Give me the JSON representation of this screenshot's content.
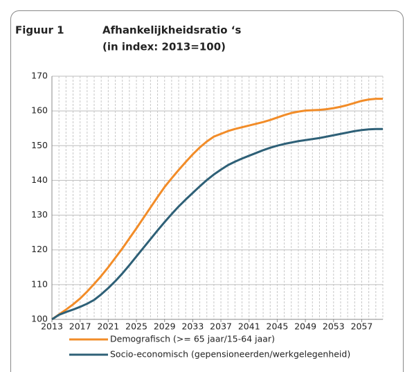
{
  "chart_data": {
    "type": "line",
    "figure_label": "Figuur 1",
    "title": "Afhankelijkheidsratio ‘s",
    "subtitle": "(in index: 2013=100)",
    "x": [
      2013,
      2014,
      2015,
      2016,
      2017,
      2018,
      2019,
      2020,
      2021,
      2022,
      2023,
      2024,
      2025,
      2026,
      2027,
      2028,
      2029,
      2030,
      2031,
      2032,
      2033,
      2034,
      2035,
      2036,
      2037,
      2038,
      2039,
      2040,
      2041,
      2042,
      2043,
      2044,
      2045,
      2046,
      2047,
      2048,
      2049,
      2050,
      2051,
      2052,
      2053,
      2054,
      2055,
      2056,
      2057,
      2058,
      2059,
      2060
    ],
    "series": [
      {
        "name": "Demografisch (>= 65 jaar/15-64 jaar)",
        "color": "#f28c28",
        "values": [
          100,
          101.4,
          102.8,
          104.3,
          106.0,
          108.0,
          110.2,
          112.5,
          115.0,
          117.7,
          120.4,
          123.3,
          126.2,
          129.2,
          132.2,
          135.2,
          138.1,
          140.6,
          143.0,
          145.3,
          147.5,
          149.5,
          151.2,
          152.6,
          153.4,
          154.2,
          154.8,
          155.3,
          155.8,
          156.3,
          156.8,
          157.4,
          158.1,
          158.8,
          159.4,
          159.8,
          160.1,
          160.2,
          160.3,
          160.5,
          160.8,
          161.2,
          161.7,
          162.3,
          162.9,
          163.3,
          163.5,
          163.5
        ]
      },
      {
        "name": "Socio-economisch (gepensioneerden/werkgelegenheid)",
        "color": "#2e6077",
        "values": [
          100,
          101.3,
          102.1,
          102.8,
          103.6,
          104.5,
          105.6,
          107.2,
          109.0,
          111.0,
          113.2,
          115.6,
          118.1,
          120.6,
          123.1,
          125.6,
          128.0,
          130.3,
          132.5,
          134.5,
          136.4,
          138.3,
          140.1,
          141.7,
          143.1,
          144.4,
          145.4,
          146.3,
          147.1,
          147.9,
          148.7,
          149.4,
          150.0,
          150.5,
          150.9,
          151.3,
          151.6,
          151.9,
          152.2,
          152.6,
          153.0,
          153.4,
          153.8,
          154.2,
          154.5,
          154.7,
          154.8,
          154.8
        ]
      }
    ],
    "xlim": [
      2013,
      2060
    ],
    "xticks": [
      2013,
      2017,
      2021,
      2025,
      2029,
      2033,
      2037,
      2041,
      2045,
      2049,
      2053,
      2057
    ],
    "ylim": [
      100,
      170
    ],
    "yticks": [
      100,
      110,
      120,
      130,
      140,
      150,
      160,
      170
    ],
    "grid": true
  }
}
